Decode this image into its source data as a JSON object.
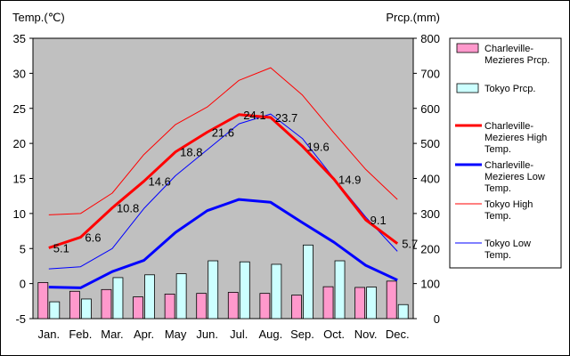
{
  "chart_data": {
    "type": "bar",
    "categories": [
      "Jan.",
      "Feb.",
      "Mar.",
      "Apr.",
      "May",
      "Jun.",
      "Jul.",
      "Aug.",
      "Sep.",
      "Oct.",
      "Nov.",
      "Dec."
    ],
    "ylabel_left": "Temp.(℃)",
    "ylabel_right": "Prcp.(mm)",
    "ylim_left": [
      -5,
      35
    ],
    "ylim_right": [
      0,
      800
    ],
    "yticks_left": [
      -5,
      0,
      5,
      10,
      15,
      20,
      25,
      30,
      35
    ],
    "yticks_right": [
      0,
      100,
      200,
      300,
      400,
      500,
      600,
      700,
      800
    ],
    "grid": false,
    "legend_position": "right",
    "plot_background": "#c0c0c0",
    "bar_series": [
      {
        "name": "Charleville-Mezieres Prcp.",
        "axis": "right",
        "color": "#ff99cc",
        "values": [
          103,
          78,
          83,
          62,
          70,
          72,
          75,
          72,
          67,
          91,
          89,
          107
        ]
      },
      {
        "name": "Tokyo Prcp.",
        "axis": "right",
        "color": "#ccffff",
        "values": [
          48,
          56,
          117,
          125,
          128,
          165,
          162,
          155,
          210,
          165,
          90,
          40
        ]
      }
    ],
    "line_series": [
      {
        "name": "Charleville-Mezieres High Temp.",
        "axis": "left",
        "color": "#ff0000",
        "width": 3,
        "values": [
          5.1,
          6.6,
          10.8,
          14.6,
          18.8,
          21.6,
          24.1,
          23.7,
          19.6,
          14.9,
          9.1,
          5.7
        ],
        "labels": [
          "5.1",
          "6.6",
          "10.8",
          "14.6",
          "18.8",
          "21.6",
          "24.1",
          "23.7",
          "19.6",
          "14.9",
          "9.1",
          "5.7"
        ]
      },
      {
        "name": "Charleville-Mezieres Low Temp.",
        "axis": "left",
        "color": "#0000ff",
        "width": 3,
        "values": [
          -0.5,
          -0.6,
          1.7,
          3.3,
          7.3,
          10.4,
          12.0,
          11.6,
          8.7,
          5.9,
          2.6,
          0.5
        ]
      },
      {
        "name": "Tokyo High Temp.",
        "axis": "left",
        "color": "#ff0000",
        "width": 1,
        "values": [
          9.8,
          10.0,
          12.9,
          18.4,
          22.7,
          25.2,
          29.0,
          30.8,
          26.9,
          21.5,
          16.3,
          12.0
        ]
      },
      {
        "name": "Tokyo Low Temp.",
        "axis": "left",
        "color": "#0000ff",
        "width": 1,
        "values": [
          2.1,
          2.4,
          5.0,
          10.7,
          15.4,
          19.1,
          22.8,
          24.2,
          20.7,
          15.0,
          9.5,
          4.6
        ]
      }
    ],
    "legend": [
      {
        "label": "Charleville-Mezieres Prcp.",
        "kind": "bar",
        "color": "#ff99cc"
      },
      {
        "label": "Tokyo Prcp.",
        "kind": "bar",
        "color": "#ccffff"
      },
      {
        "label": "Charleville-Mezieres High Temp.",
        "kind": "line",
        "color": "#ff0000",
        "width": 3
      },
      {
        "label": "Charleville-Mezieres Low Temp.",
        "kind": "line",
        "color": "#0000ff",
        "width": 3
      },
      {
        "label": "Tokyo High Temp.",
        "kind": "line",
        "color": "#ff0000",
        "width": 1
      },
      {
        "label": "Tokyo Low Temp.",
        "kind": "line",
        "color": "#0000ff",
        "width": 1
      }
    ]
  }
}
